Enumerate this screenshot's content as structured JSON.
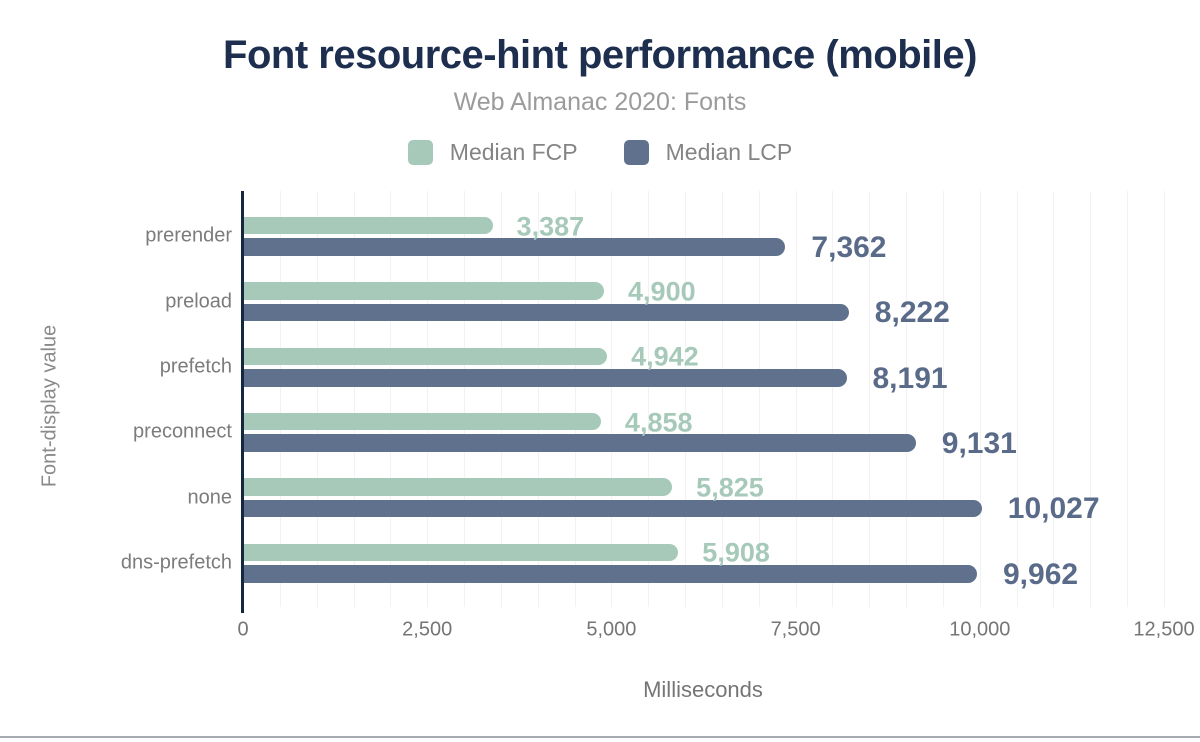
{
  "colors": {
    "fcp_green": "#a7c9ba",
    "lcp_blue": "#5f718c",
    "lcp_value_text": "#5a6b8a",
    "title_navy": "#1d2e4e",
    "axis_line": "#16283f",
    "gridline": "#f2f2f4",
    "muted_text": "#7c7c7c"
  },
  "chart_data": {
    "type": "bar",
    "orientation": "horizontal",
    "title": "Font resource-hint performance (mobile)",
    "subtitle": "Web Almanac 2020: Fonts",
    "categories": [
      "prerender",
      "preload",
      "prefetch",
      "preconnect",
      "none",
      "dns-prefetch"
    ],
    "series": [
      {
        "name": "Median FCP",
        "color": "#a7c9ba",
        "values": [
          3387,
          4900,
          4942,
          4858,
          5825,
          5908
        ],
        "labels": [
          "3,387",
          "4,900",
          "4,942",
          "4,858",
          "5,825",
          "5,908"
        ]
      },
      {
        "name": "Median LCP",
        "color": "#5f718c",
        "values": [
          7362,
          8222,
          8191,
          9131,
          10027,
          9962
        ],
        "labels": [
          "7,362",
          "8,222",
          "8,191",
          "9,131",
          "10,027",
          "9,962"
        ]
      }
    ],
    "xlabel": "Milliseconds",
    "ylabel": "Font-display value",
    "xlim": [
      0,
      12500
    ],
    "x_ticks": [
      {
        "value": 0,
        "label": "0"
      },
      {
        "value": 2500,
        "label": "2,500"
      },
      {
        "value": 5000,
        "label": "5,000"
      },
      {
        "value": 7500,
        "label": "7,500"
      },
      {
        "value": 10000,
        "label": "10,000"
      },
      {
        "value": 12500,
        "label": "12,500"
      }
    ],
    "grid_interval": 500,
    "grid": true,
    "legend_position": "top",
    "value_labels_shown": true
  }
}
